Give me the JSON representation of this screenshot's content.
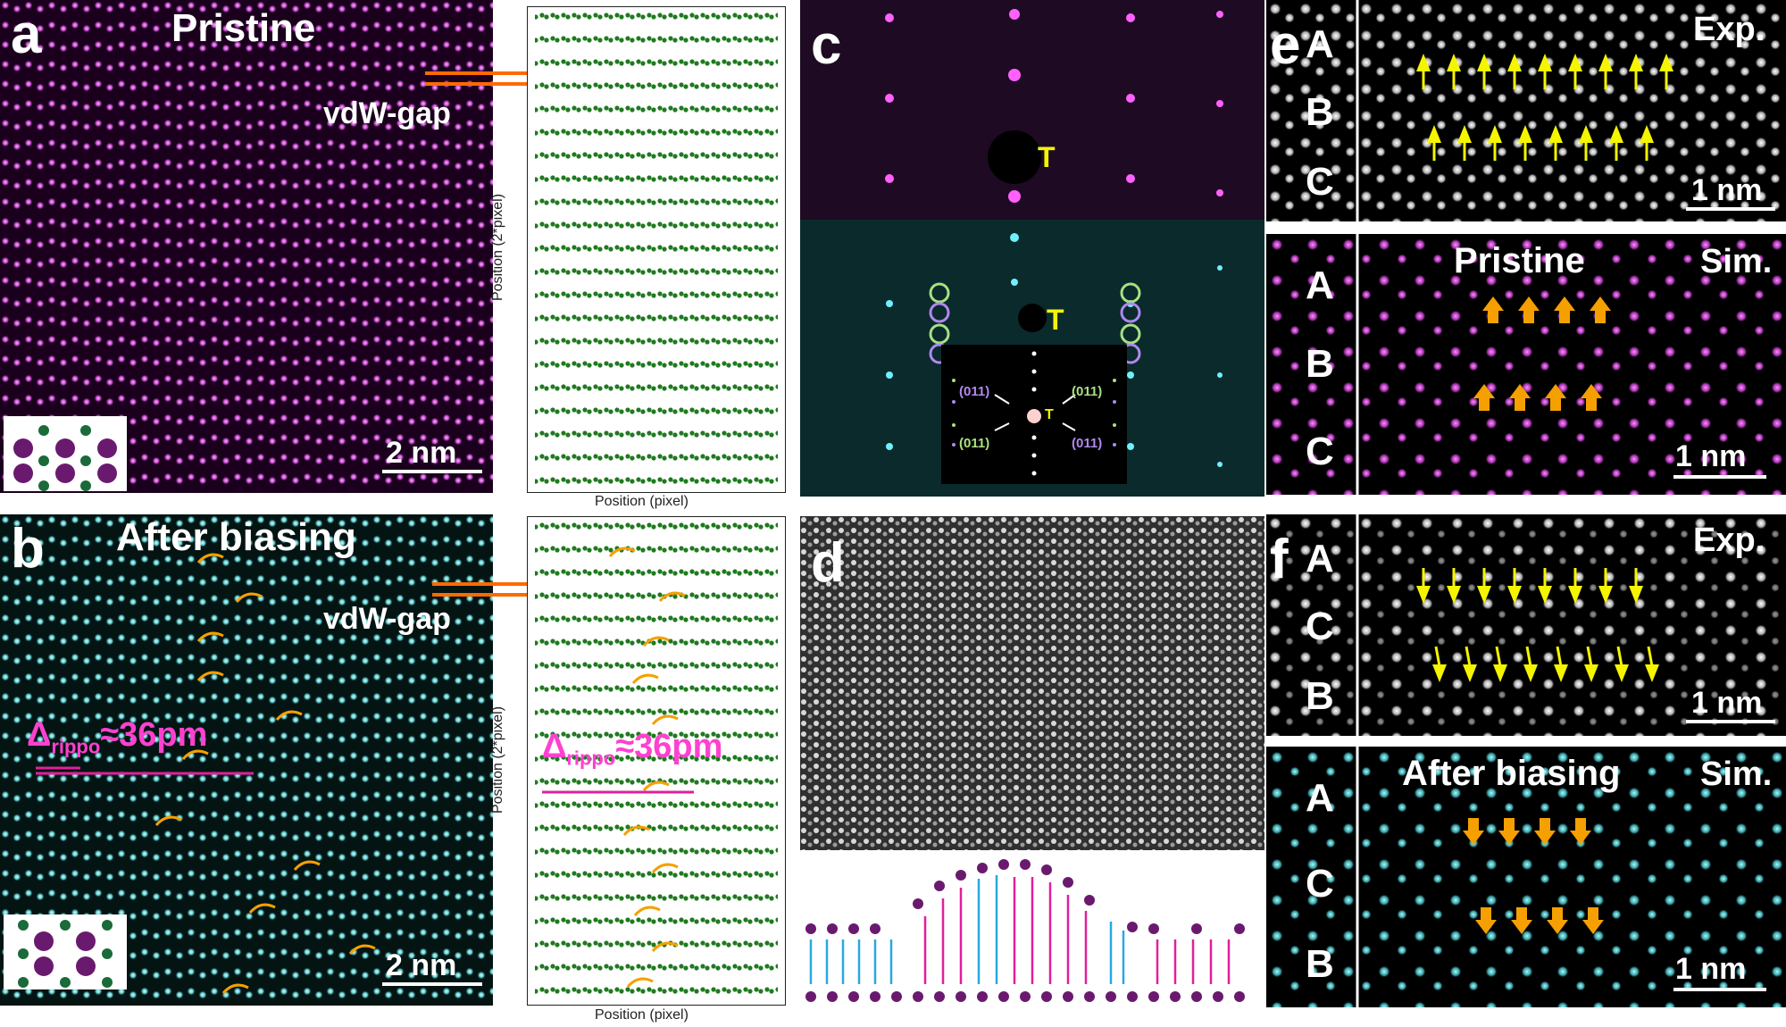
{
  "panels": {
    "a": {
      "letter": "a",
      "title": "Pristine",
      "gap_label": "vdW-gap",
      "scale": "2 nm"
    },
    "a_plot": {
      "xlabel": "Position (pixel)",
      "ylabel": "Position (2*pixel)"
    },
    "b": {
      "letter": "b",
      "title": "After biasing",
      "gap_label": "vdW-gap",
      "scale": "2 nm",
      "delta_main": "Δ",
      "delta_sub": "rippo",
      "delta_val": "≈36pm"
    },
    "b_plot": {
      "xlabel": "Position (pixel)",
      "ylabel": "Position (2*pixel)",
      "delta_main": "Δ",
      "delta_sub": "rippo",
      "delta_val": "≈36pm"
    },
    "c": {
      "letter": "c",
      "t_label": "T",
      "inset_t": "T",
      "inset_labels": [
        "(011)",
        "(011)",
        "(011)",
        "(011)"
      ]
    },
    "d": {
      "letter": "d"
    },
    "e": {
      "letter": "e",
      "exp_label": "Exp.",
      "sim_label": "Sim.",
      "sim_title": "Pristine",
      "stack_exp": [
        "A",
        "B",
        "C"
      ],
      "stack_sim": [
        "A",
        "B",
        "C"
      ],
      "scale": "1 nm"
    },
    "f": {
      "letter": "f",
      "exp_label": "Exp.",
      "sim_label": "Sim.",
      "sim_title": "After biasing",
      "stack_exp": [
        "A",
        "C",
        "B"
      ],
      "stack_sim": [
        "A",
        "C",
        "B"
      ],
      "scale": "1 nm"
    }
  },
  "colors": {
    "magenta": "#c04bc8",
    "cyan": "#5fc8cc",
    "green": "#1f7a1f",
    "yellow": "#f5f500",
    "orange": "#f5a000",
    "pink": "#e0209a",
    "blue": "#2aa8e0",
    "purple": "#6a1a6e",
    "teal_atom": "#1a6a3a",
    "gap_line": "#ff6a00"
  }
}
